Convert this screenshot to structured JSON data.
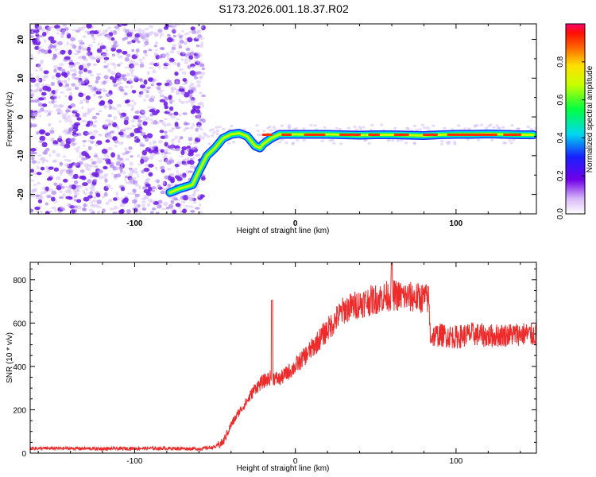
{
  "page_title": "S173.2026.001.18.37.R02",
  "colors": {
    "snr_line": "#ee2a2a",
    "noise": "#7a28e6",
    "background": "#ffffff"
  },
  "chart_data": [
    {
      "type": "heatmap",
      "title": "S173.2026.001.18.37.R02",
      "xlabel": "Height of straight line (km)",
      "ylabel": "Frequency (Hz)",
      "xlim": [
        -165,
        150
      ],
      "ylim": [
        -25,
        24
      ],
      "x_ticks": [
        -100,
        0,
        100
      ],
      "x_tick_labels": [
        "-100",
        "0",
        "100"
      ],
      "y_ticks": [
        20,
        10,
        0,
        -10,
        -20
      ],
      "y_tick_labels": [
        "20",
        "10",
        "0",
        "-10",
        "-20"
      ],
      "colorbar": {
        "label": "Normalized spectral amplitude",
        "range": [
          0,
          1
        ],
        "ticks": [
          0.0,
          0.2,
          0.4,
          0.6,
          0.8
        ],
        "tick_labels": [
          "0.0",
          "0.2",
          "0.4",
          "0.6",
          "0.8"
        ]
      },
      "signal_track": {
        "description": "frequency of strongest signal vs height",
        "x": [
          -78,
          -72,
          -68,
          -64,
          -60,
          -55,
          -50,
          -45,
          -40,
          -35,
          -30,
          -25,
          -22,
          -20,
          -15,
          -10,
          -5,
          0,
          10,
          20,
          30,
          40,
          50,
          60,
          70,
          80,
          90,
          100,
          110,
          120,
          130,
          140,
          148
        ],
        "y": [
          -19.5,
          -18.5,
          -18,
          -17.5,
          -14,
          -10,
          -8,
          -5.5,
          -4.5,
          -4.2,
          -5,
          -7.5,
          -8,
          -7,
          -5.5,
          -4.5,
          -4.5,
          -4.5,
          -4.5,
          -4.5,
          -4.6,
          -4.7,
          -4.6,
          -4.6,
          -4.7,
          -4.8,
          -4.6,
          -4.5,
          -4.5,
          -4.4,
          -4.5,
          -4.6,
          -4.6
        ]
      },
      "noise_region_x": [
        -165,
        -60
      ]
    },
    {
      "type": "line",
      "xlabel": "Height of straight line (km)",
      "ylabel": "SNR (10 * v/v)",
      "xlim": [
        -165,
        150
      ],
      "ylim": [
        0,
        880
      ],
      "x_ticks": [
        -100,
        0,
        100
      ],
      "x_tick_labels": [
        "-100",
        "0",
        "100"
      ],
      "y_ticks": [
        0,
        200,
        400,
        600,
        800
      ],
      "y_tick_labels": [
        "0",
        "200",
        "400",
        "600",
        "800"
      ],
      "series": [
        {
          "name": "SNR",
          "x": [
            -165,
            -140,
            -120,
            -100,
            -80,
            -60,
            -50,
            -45,
            -40,
            -35,
            -30,
            -25,
            -20,
            -15,
            -10,
            -5,
            0,
            10,
            20,
            30,
            40,
            50,
            60,
            70,
            80,
            83,
            84,
            90,
            100,
            110,
            120,
            130,
            140,
            150
          ],
          "values": [
            22,
            22,
            20,
            22,
            22,
            20,
            28,
            50,
            130,
            190,
            240,
            300,
            330,
            350,
            340,
            370,
            400,
            480,
            570,
            660,
            690,
            710,
            730,
            720,
            715,
            710,
            540,
            545,
            535,
            550,
            540,
            545,
            550,
            545
          ],
          "spikes": [
            {
              "x": -14.5,
              "y": 705
            },
            {
              "x": 60,
              "y": 875
            }
          ]
        }
      ]
    }
  ]
}
